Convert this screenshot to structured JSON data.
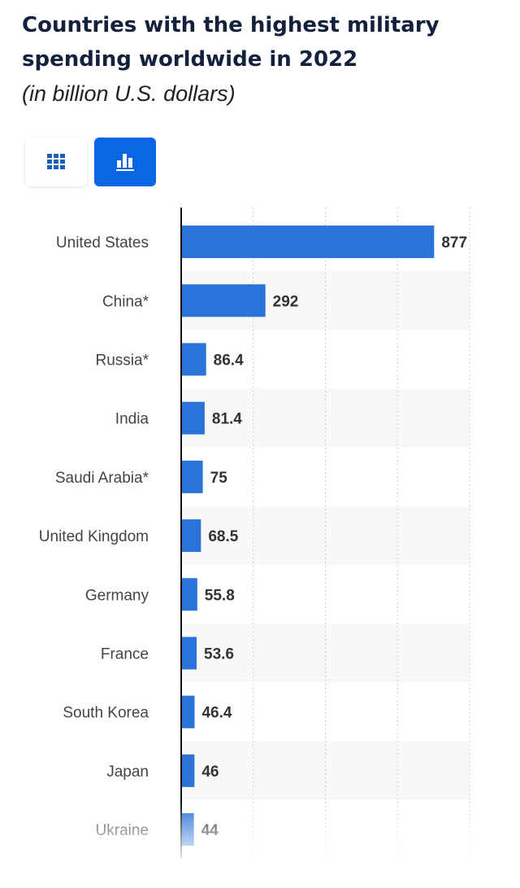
{
  "header": {
    "title": "Countries with the highest military spending worldwide in 2022",
    "subtitle": "(in billion U.S. dollars)"
  },
  "toolbar": {
    "table_icon": "grid-icon",
    "chart_icon": "bar-chart-icon",
    "accent": "#0b66e4"
  },
  "chart_data": {
    "type": "bar",
    "orientation": "horizontal",
    "title": "Countries with the highest military spending worldwide in 2022",
    "subtitle": "(in billion U.S. dollars)",
    "categories": [
      "United States",
      "China*",
      "Russia*",
      "India",
      "Saudi Arabia*",
      "United Kingdom",
      "Germany",
      "France",
      "South Korea",
      "Japan",
      "Ukraine"
    ],
    "values": [
      877,
      292,
      86.4,
      81.4,
      75,
      68.5,
      55.8,
      53.6,
      46.4,
      46,
      44
    ],
    "value_labels": [
      "877",
      "292",
      "86.4",
      "81.4",
      "75",
      "68.5",
      "55.8",
      "53.6",
      "46.4",
      "46",
      "44"
    ],
    "xlim": [
      0,
      1000
    ],
    "grid": true,
    "bar_color": "#2a74d9",
    "legend": "none"
  }
}
